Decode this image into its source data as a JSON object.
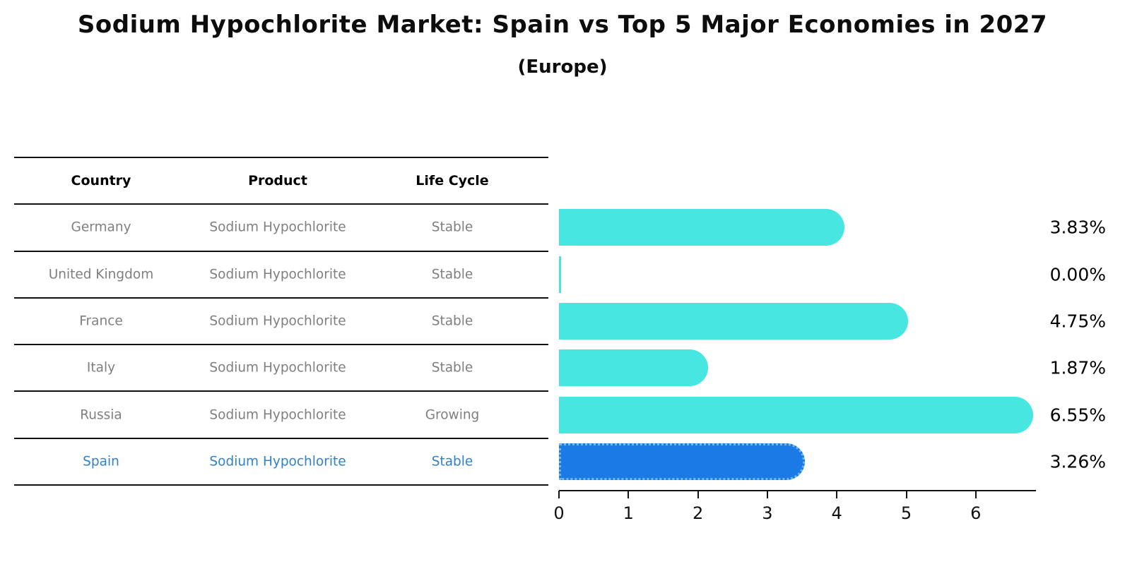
{
  "title": "Sodium Hypochlorite Market: Spain vs Top 5 Major Economies in 2027",
  "subtitle": "(Europe)",
  "table": {
    "headers": [
      "Country",
      "Product",
      "Life Cycle"
    ],
    "rows": [
      {
        "country": "Germany",
        "product": "Sodium Hypochlorite",
        "life_cycle": "Stable",
        "highlighted": false
      },
      {
        "country": "United Kingdom",
        "product": "Sodium Hypochlorite",
        "life_cycle": "Stable",
        "highlighted": false
      },
      {
        "country": "France",
        "product": "Sodium Hypochlorite",
        "life_cycle": "Stable",
        "highlighted": false
      },
      {
        "country": "Italy",
        "product": "Sodium Hypochlorite",
        "life_cycle": "Stable",
        "highlighted": false
      },
      {
        "country": "Russia",
        "product": "Sodium Hypochlorite",
        "life_cycle": "Growing",
        "highlighted": false
      },
      {
        "country": "Spain",
        "product": "Sodium Hypochlorite",
        "life_cycle": "Stable",
        "highlighted": true
      }
    ]
  },
  "chart_data": {
    "type": "bar",
    "orientation": "horizontal",
    "title": "Sodium Hypochlorite Market: Spain vs Top 5 Major Economies in 2027 (Europe)",
    "categories": [
      "Germany",
      "United Kingdom",
      "France",
      "Italy",
      "Russia",
      "Spain"
    ],
    "values": [
      3.83,
      0.0,
      4.75,
      1.87,
      6.55,
      3.26
    ],
    "value_labels": [
      "3.83%",
      "0.00%",
      "4.75%",
      "1.87%",
      "6.55%",
      "3.26%"
    ],
    "xlabel": "",
    "ylabel": "",
    "xlim": [
      0,
      6.9
    ],
    "x_ticks": [
      "0",
      "1",
      "2",
      "3",
      "4",
      "5",
      "6"
    ],
    "grid": false,
    "legend": "none",
    "bar_color": "#48e6e1",
    "highlight_bar_color": "#1b7ae6",
    "highlight_border_color": "#6db9f2",
    "highlighted_category": "Spain"
  },
  "colors": {
    "background": "#ffffff",
    "title_text": "#0d0d0d",
    "row_text": "#7f7f7f",
    "highlight_text": "#3182c8",
    "line": "#111111"
  }
}
